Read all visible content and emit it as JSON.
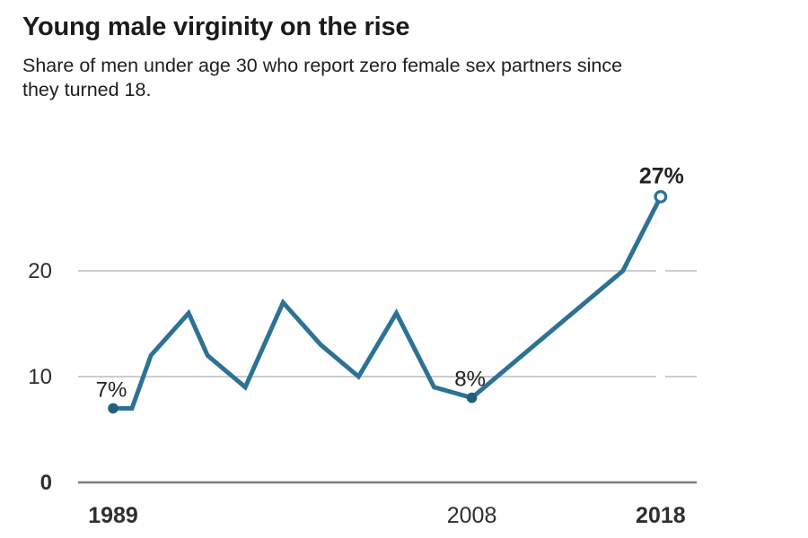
{
  "header": {
    "title": "Young male virginity on the rise",
    "subtitle_line1": "Share of men under age 30 who report zero female sex partners since",
    "subtitle_line2": "they turned 18."
  },
  "chart_data": {
    "type": "line",
    "title": "Young male virginity on the rise",
    "subtitle": "Share of men under age 30 who report zero female sex partners since they turned 18.",
    "x": [
      1989,
      1990,
      1991,
      1993,
      1994,
      1996,
      1998,
      2000,
      2002,
      2004,
      2006,
      2008,
      2016,
      2018
    ],
    "values": [
      7,
      7,
      12,
      16,
      12,
      9,
      17,
      13,
      10,
      16,
      9,
      8,
      20,
      27
    ],
    "xlabel": "",
    "ylabel": "",
    "xlim": [
      1989,
      2018
    ],
    "ylim": [
      0,
      30
    ],
    "grid": "horizontal",
    "legend": "none",
    "y_ticks": [
      {
        "value": 0,
        "label": "0",
        "bold": true
      },
      {
        "value": 10,
        "label": "10",
        "bold": false
      },
      {
        "value": 20,
        "label": "20",
        "bold": false
      }
    ],
    "x_ticks": [
      {
        "year": 1989,
        "label": "1989",
        "bold": true
      },
      {
        "year": 2008,
        "label": "2008",
        "bold": false
      },
      {
        "year": 2018,
        "label": "2018",
        "bold": true
      }
    ],
    "annotations": [
      {
        "year": 1989,
        "value": 7,
        "label": "7%",
        "marker": "filled",
        "bold": false
      },
      {
        "year": 2008,
        "value": 8,
        "label": "8%",
        "marker": "filled",
        "bold": false
      },
      {
        "year": 2018,
        "value": 27,
        "label": "27%",
        "marker": "open",
        "bold": true
      }
    ],
    "colors": {
      "line": "#2d7295",
      "marker_fill": "#245e7e",
      "gridline": "#cccccc",
      "axis": "#7c7c7c",
      "title_text": "#1b1b1b",
      "subtitle_text": "#1e1e1e",
      "axis_label_text": "#2e2e2e",
      "annotation_text": "#222222",
      "background": "#ffffff"
    }
  }
}
